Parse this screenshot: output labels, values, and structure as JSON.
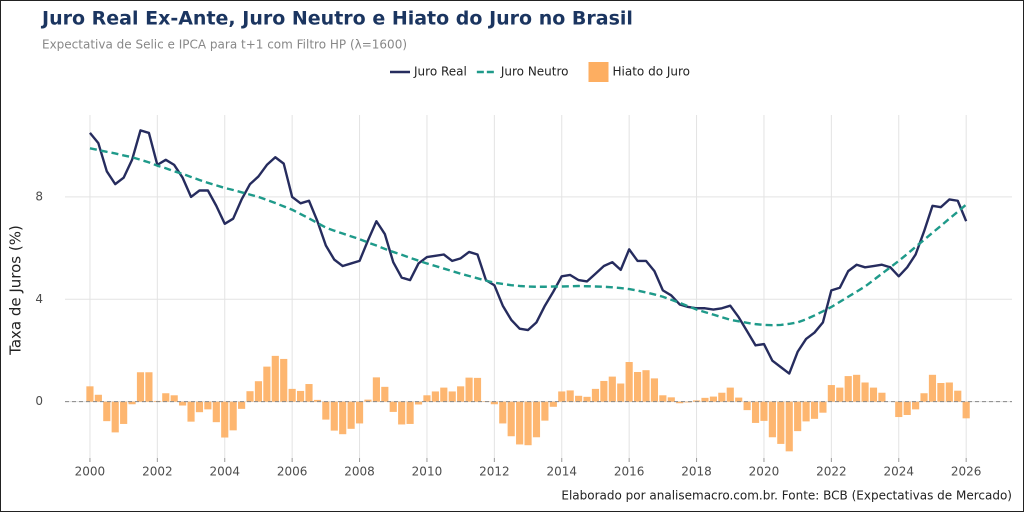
{
  "chart_data": {
    "type": "combo",
    "title": "Juro Real Ex-Ante, Juro Neutro e Hiato do Juro no Brasil",
    "subtitle": "Expectativa de Selic e IPCA para t+1 com Filtro HP (λ=1600)",
    "y_label": "Taxa de Juros (%)",
    "caption": "Elaborado por analisemacro.com.br. Fonte: BCB (Expectativas de Mercado)",
    "legend": "top",
    "grid": true,
    "xlim": [
      1999.26,
      2027.36
    ],
    "ylim": [
      -2.2,
      11.2
    ],
    "xticks": [
      2000,
      2002,
      2004,
      2006,
      2008,
      2010,
      2012,
      2014,
      2016,
      2018,
      2020,
      2022,
      2024,
      2026
    ],
    "yticks": [
      0,
      4,
      8
    ],
    "x": [
      2000,
      2000.25,
      2000.5,
      2000.75,
      2001,
      2001.25,
      2001.5,
      2001.75,
      2002,
      2002.25,
      2002.5,
      2002.75,
      2003,
      2003.25,
      2003.5,
      2003.75,
      2004,
      2004.25,
      2004.5,
      2004.75,
      2005,
      2005.25,
      2005.5,
      2005.75,
      2006,
      2006.25,
      2006.5,
      2006.75,
      2007,
      2007.25,
      2007.5,
      2007.75,
      2008,
      2008.25,
      2008.5,
      2008.75,
      2009,
      2009.25,
      2009.5,
      2009.75,
      2010,
      2010.25,
      2010.5,
      2010.75,
      2011,
      2011.25,
      2011.5,
      2011.75,
      2012,
      2012.25,
      2012.5,
      2012.75,
      2013,
      2013.25,
      2013.5,
      2013.75,
      2014,
      2014.25,
      2014.5,
      2014.75,
      2015,
      2015.25,
      2015.5,
      2015.75,
      2016,
      2016.25,
      2016.5,
      2016.75,
      2017,
      2017.25,
      2017.5,
      2017.75,
      2018,
      2018.25,
      2018.5,
      2018.75,
      2019,
      2019.25,
      2019.5,
      2019.75,
      2020,
      2020.25,
      2020.5,
      2020.75,
      2021,
      2021.25,
      2021.5,
      2021.75,
      2022,
      2022.25,
      2022.5,
      2022.75,
      2023,
      2023.25,
      2023.5,
      2023.75,
      2024,
      2024.25,
      2024.5,
      2024.75,
      2025,
      2025.25,
      2025.5,
      2025.75,
      2026
    ],
    "series": [
      {
        "name": "Hiato do Juro",
        "type": "bar",
        "color": "#fdae61",
        "values": [
          0.6,
          0.27,
          -0.76,
          -1.2,
          -0.87,
          -0.1,
          1.15,
          1.15,
          0.03,
          0.33,
          0.25,
          -0.15,
          -0.78,
          -0.41,
          -0.3,
          -0.8,
          -1.4,
          -1.12,
          -0.28,
          0.41,
          0.8,
          1.37,
          1.79,
          1.67,
          0.5,
          0.42,
          0.69,
          0.07,
          -0.7,
          -1.13,
          -1.27,
          -1.06,
          -0.85,
          0.08,
          0.95,
          0.58,
          -0.4,
          -0.89,
          -0.87,
          -0.11,
          0.25,
          0.4,
          0.55,
          0.4,
          0.6,
          0.94,
          0.93,
          0.02,
          -0.1,
          -0.85,
          -1.35,
          -1.67,
          -1.7,
          -1.39,
          -0.74,
          -0.2,
          0.4,
          0.44,
          0.23,
          0.19,
          0.5,
          0.81,
          0.98,
          0.71,
          1.55,
          1.16,
          1.23,
          0.91,
          0.25,
          0.17,
          -0.06,
          -0.03,
          0.05,
          0.15,
          0.2,
          0.35,
          0.55,
          0.16,
          -0.33,
          -0.83,
          -0.75,
          -1.39,
          -1.65,
          -1.94,
          -1.15,
          -0.77,
          -0.67,
          -0.43,
          0.65,
          0.55,
          1.0,
          1.05,
          0.75,
          0.55,
          0.35,
          0.0,
          -0.6,
          -0.52,
          -0.3,
          0.33,
          1.05,
          0.73,
          0.75,
          0.43,
          -0.65
        ]
      },
      {
        "name": "Juro Real",
        "type": "line",
        "color": "#262c5e",
        "values": [
          10.5,
          10.1,
          9.0,
          8.5,
          8.75,
          9.45,
          10.6,
          10.5,
          9.25,
          9.45,
          9.25,
          8.75,
          8.0,
          8.25,
          8.25,
          7.65,
          6.95,
          7.15,
          7.9,
          8.5,
          8.8,
          9.25,
          9.55,
          9.3,
          8.0,
          7.75,
          7.85,
          7.05,
          6.1,
          5.55,
          5.3,
          5.4,
          5.5,
          6.3,
          7.05,
          6.55,
          5.45,
          4.85,
          4.75,
          5.4,
          5.65,
          5.7,
          5.75,
          5.5,
          5.6,
          5.85,
          5.75,
          4.75,
          4.55,
          3.75,
          3.2,
          2.85,
          2.8,
          3.1,
          3.75,
          4.3,
          4.9,
          4.95,
          4.75,
          4.7,
          5.0,
          5.3,
          5.45,
          5.15,
          5.95,
          5.5,
          5.5,
          5.1,
          4.35,
          4.15,
          3.8,
          3.7,
          3.65,
          3.65,
          3.6,
          3.65,
          3.75,
          3.3,
          2.75,
          2.2,
          2.25,
          1.6,
          1.35,
          1.1,
          1.95,
          2.45,
          2.7,
          3.1,
          4.35,
          4.45,
          5.1,
          5.35,
          5.25,
          5.3,
          5.35,
          5.25,
          4.9,
          5.25,
          5.75,
          6.65,
          7.65,
          7.6,
          7.9,
          7.85,
          7.05
        ]
      },
      {
        "name": "Juro Neutro",
        "type": "line",
        "dashed": true,
        "color": "#1f9a8a",
        "values": [
          9.9,
          9.83,
          9.76,
          9.7,
          9.62,
          9.55,
          9.45,
          9.35,
          9.22,
          9.12,
          9.0,
          8.9,
          8.78,
          8.66,
          8.55,
          8.45,
          8.35,
          8.27,
          8.18,
          8.09,
          8.0,
          7.88,
          7.76,
          7.63,
          7.5,
          7.33,
          7.16,
          6.98,
          6.8,
          6.68,
          6.57,
          6.46,
          6.35,
          6.22,
          6.1,
          5.97,
          5.85,
          5.74,
          5.62,
          5.51,
          5.4,
          5.3,
          5.2,
          5.1,
          5.0,
          4.91,
          4.82,
          4.73,
          4.65,
          4.6,
          4.55,
          4.52,
          4.5,
          4.49,
          4.49,
          4.5,
          4.5,
          4.51,
          4.52,
          4.51,
          4.5,
          4.49,
          4.47,
          4.44,
          4.4,
          4.34,
          4.27,
          4.19,
          4.1,
          3.98,
          3.86,
          3.73,
          3.6,
          3.5,
          3.4,
          3.3,
          3.2,
          3.14,
          3.08,
          3.03,
          3.0,
          2.99,
          3.0,
          3.04,
          3.1,
          3.22,
          3.37,
          3.53,
          3.7,
          3.9,
          4.1,
          4.3,
          4.5,
          4.75,
          5.0,
          5.25,
          5.5,
          5.77,
          6.05,
          6.32,
          6.6,
          6.87,
          7.15,
          7.42,
          7.7
        ]
      }
    ]
  }
}
